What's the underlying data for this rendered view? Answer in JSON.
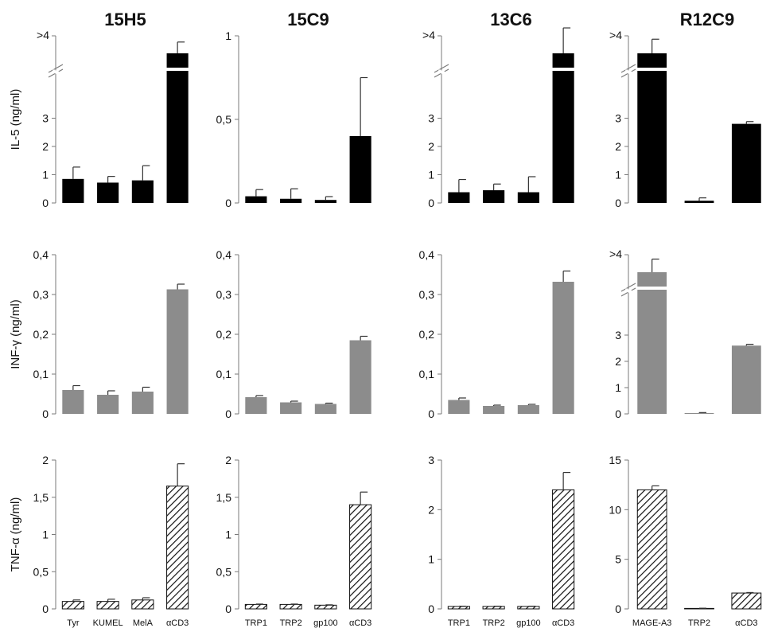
{
  "chart_data": [
    {
      "type": "bar",
      "title": "15H5",
      "ylabel": "IL-5 (ng/ml)",
      "categories": [
        "Tyr",
        "KUMEL",
        "MelA",
        "αCD3"
      ],
      "values": [
        0.85,
        0.72,
        0.8,
        4.5
      ],
      "errors": [
        0.42,
        0.22,
        0.52,
        0.4
      ],
      "ylim": [
        0,
        4
      ],
      "yticks": [
        "0",
        "1",
        "2",
        "3"
      ],
      "broken_axis": true,
      "break_label": ">4",
      "fill": "black"
    },
    {
      "type": "bar",
      "title": "15C9",
      "ylabel": "",
      "categories": [
        "TRP1",
        "TRP2",
        "gp100",
        "αCD3"
      ],
      "values": [
        0.04,
        0.025,
        0.018,
        0.4
      ],
      "errors": [
        0.04,
        0.06,
        0.02,
        0.35
      ],
      "ylim": [
        0,
        1
      ],
      "yticks": [
        "0",
        "0,5",
        "1"
      ],
      "broken_axis": false,
      "fill": "black"
    },
    {
      "type": "bar",
      "title": "13C6",
      "ylabel": "",
      "categories": [
        "TRP1",
        "TRP2",
        "gp100",
        "αCD3"
      ],
      "values": [
        0.38,
        0.45,
        0.38,
        4.3
      ],
      "errors": [
        0.45,
        0.22,
        0.55,
        0.9
      ],
      "ylim": [
        0,
        4
      ],
      "yticks": [
        "0",
        "1",
        "2",
        "3"
      ],
      "broken_axis": true,
      "break_label": ">4",
      "fill": "black"
    },
    {
      "type": "bar",
      "title": "R12C9",
      "ylabel": "",
      "categories": [
        "MAGE-A3",
        "TRP2",
        "αCD3"
      ],
      "values": [
        4.4,
        0.08,
        2.8
      ],
      "errors": [
        0.5,
        0.1,
        0.08
      ],
      "ylim": [
        0,
        4
      ],
      "yticks": [
        "0",
        "1",
        "2",
        "3"
      ],
      "broken_axis": true,
      "break_label": ">4",
      "fill": "black"
    },
    {
      "type": "bar",
      "title": "",
      "ylabel": "INF-γ (ng/ml)",
      "categories": [
        "Tyr",
        "KUMEL",
        "MelA",
        "αCD3"
      ],
      "values": [
        0.06,
        0.048,
        0.056,
        0.313
      ],
      "errors": [
        0.011,
        0.01,
        0.011,
        0.013
      ],
      "ylim": [
        0,
        0.4
      ],
      "yticks": [
        "0",
        "0,1",
        "0,2",
        "0,3",
        "0,4"
      ],
      "broken_axis": false,
      "fill": "gray"
    },
    {
      "type": "bar",
      "title": "",
      "ylabel": "",
      "categories": [
        "TRP1",
        "TRP2",
        "gp100",
        "αCD3"
      ],
      "values": [
        0.042,
        0.029,
        0.025,
        0.185
      ],
      "errors": [
        0.004,
        0.003,
        0.002,
        0.01
      ],
      "ylim": [
        0,
        0.4
      ],
      "yticks": [
        "0",
        "0,1",
        "0,2",
        "0,3",
        "0,4"
      ],
      "broken_axis": false,
      "fill": "gray"
    },
    {
      "type": "bar",
      "title": "",
      "ylabel": "",
      "categories": [
        "TRP1",
        "TRP2",
        "gp100",
        "αCD3"
      ],
      "values": [
        0.035,
        0.02,
        0.022,
        0.332
      ],
      "errors": [
        0.005,
        0.002,
        0.002,
        0.027
      ],
      "ylim": [
        0,
        0.4
      ],
      "yticks": [
        "0",
        "0,1",
        "0,2",
        "0,3",
        "0,4"
      ],
      "broken_axis": false,
      "fill": "gray"
    },
    {
      "type": "bar",
      "title": "",
      "ylabel": "",
      "categories": [
        "MAGE-A3",
        "TRP2",
        "αCD3"
      ],
      "values": [
        4.4,
        0.03,
        2.6
      ],
      "errors": [
        0.5,
        0.02,
        0.05
      ],
      "ylim": [
        0,
        4
      ],
      "yticks": [
        "0",
        "1",
        "2",
        "3"
      ],
      "broken_axis": true,
      "break_label": ">4",
      "fill": "gray"
    },
    {
      "type": "bar",
      "title": "",
      "ylabel": "TNF-α (ng/ml)",
      "categories": [
        "Tyr",
        "KUMEL",
        "MelA",
        "αCD3"
      ],
      "values": [
        0.1,
        0.1,
        0.12,
        1.65
      ],
      "errors": [
        0.02,
        0.03,
        0.03,
        0.3
      ],
      "ylim": [
        0,
        2
      ],
      "yticks": [
        "0",
        "0,5",
        "1",
        "1,5",
        "2"
      ],
      "broken_axis": false,
      "fill": "hatch"
    },
    {
      "type": "bar",
      "title": "",
      "ylabel": "",
      "categories": [
        "TRP1",
        "TRP2",
        "gp100",
        "αCD3"
      ],
      "values": [
        0.06,
        0.06,
        0.05,
        1.4
      ],
      "errors": [
        0.005,
        0.005,
        0.005,
        0.17
      ],
      "ylim": [
        0,
        2
      ],
      "yticks": [
        "0",
        "0,5",
        "1",
        "1,5",
        "2"
      ],
      "broken_axis": false,
      "fill": "hatch"
    },
    {
      "type": "bar",
      "title": "",
      "ylabel": "",
      "categories": [
        "TRP1",
        "TRP2",
        "gp100",
        "αCD3"
      ],
      "values": [
        0.05,
        0.05,
        0.05,
        2.4
      ],
      "errors": [
        0.005,
        0.005,
        0.005,
        0.35
      ],
      "ylim": [
        0,
        3
      ],
      "yticks": [
        "0",
        "1",
        "2",
        "3"
      ],
      "broken_axis": false,
      "fill": "hatch"
    },
    {
      "type": "bar",
      "title": "",
      "ylabel": "",
      "categories": [
        "MAGE-A3",
        "TRP2",
        "αCD3"
      ],
      "values": [
        12,
        0.05,
        1.6
      ],
      "errors": [
        0.4,
        0.02,
        0.05
      ],
      "ylim": [
        0,
        15
      ],
      "yticks": [
        "0",
        "5",
        "10",
        "15"
      ],
      "broken_axis": false,
      "fill": "hatch"
    }
  ]
}
